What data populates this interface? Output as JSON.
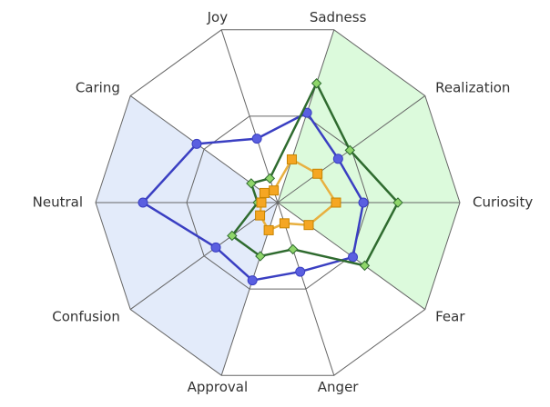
{
  "chart_data": {
    "type": "radar",
    "categories": [
      "Joy",
      "Sadness",
      "Realization",
      "Curiosity",
      "Fear",
      "Anger",
      "Approval",
      "Confusion",
      "Neutral",
      "Caring"
    ],
    "rlim": [
      0,
      1
    ],
    "rticks": [
      0.5,
      1
    ],
    "grid": true,
    "sector_shading": [
      {
        "from": 1,
        "to": 4,
        "color": "#dcfadc"
      },
      {
        "from": 6,
        "to": 9,
        "color": "#e3ebfa"
      }
    ],
    "series": [
      {
        "color": "#3a3fc2",
        "marker_color": "#5a5fe0",
        "marker": "circle",
        "values": [
          0.37,
          0.52,
          0.41,
          0.47,
          0.51,
          0.4,
          0.45,
          0.42,
          0.74,
          0.55
        ]
      },
      {
        "color": "#2f6b2f",
        "marker_color": "#8fd66a",
        "marker": "diamond",
        "values": [
          0.14,
          0.69,
          0.49,
          0.66,
          0.59,
          0.27,
          0.31,
          0.31,
          0.11,
          0.18
        ]
      },
      {
        "color": "#e8b040",
        "marker_color": "#f5a623",
        "marker": "square",
        "values": [
          0.07,
          0.25,
          0.27,
          0.32,
          0.21,
          0.12,
          0.16,
          0.12,
          0.09,
          0.09
        ]
      }
    ]
  }
}
